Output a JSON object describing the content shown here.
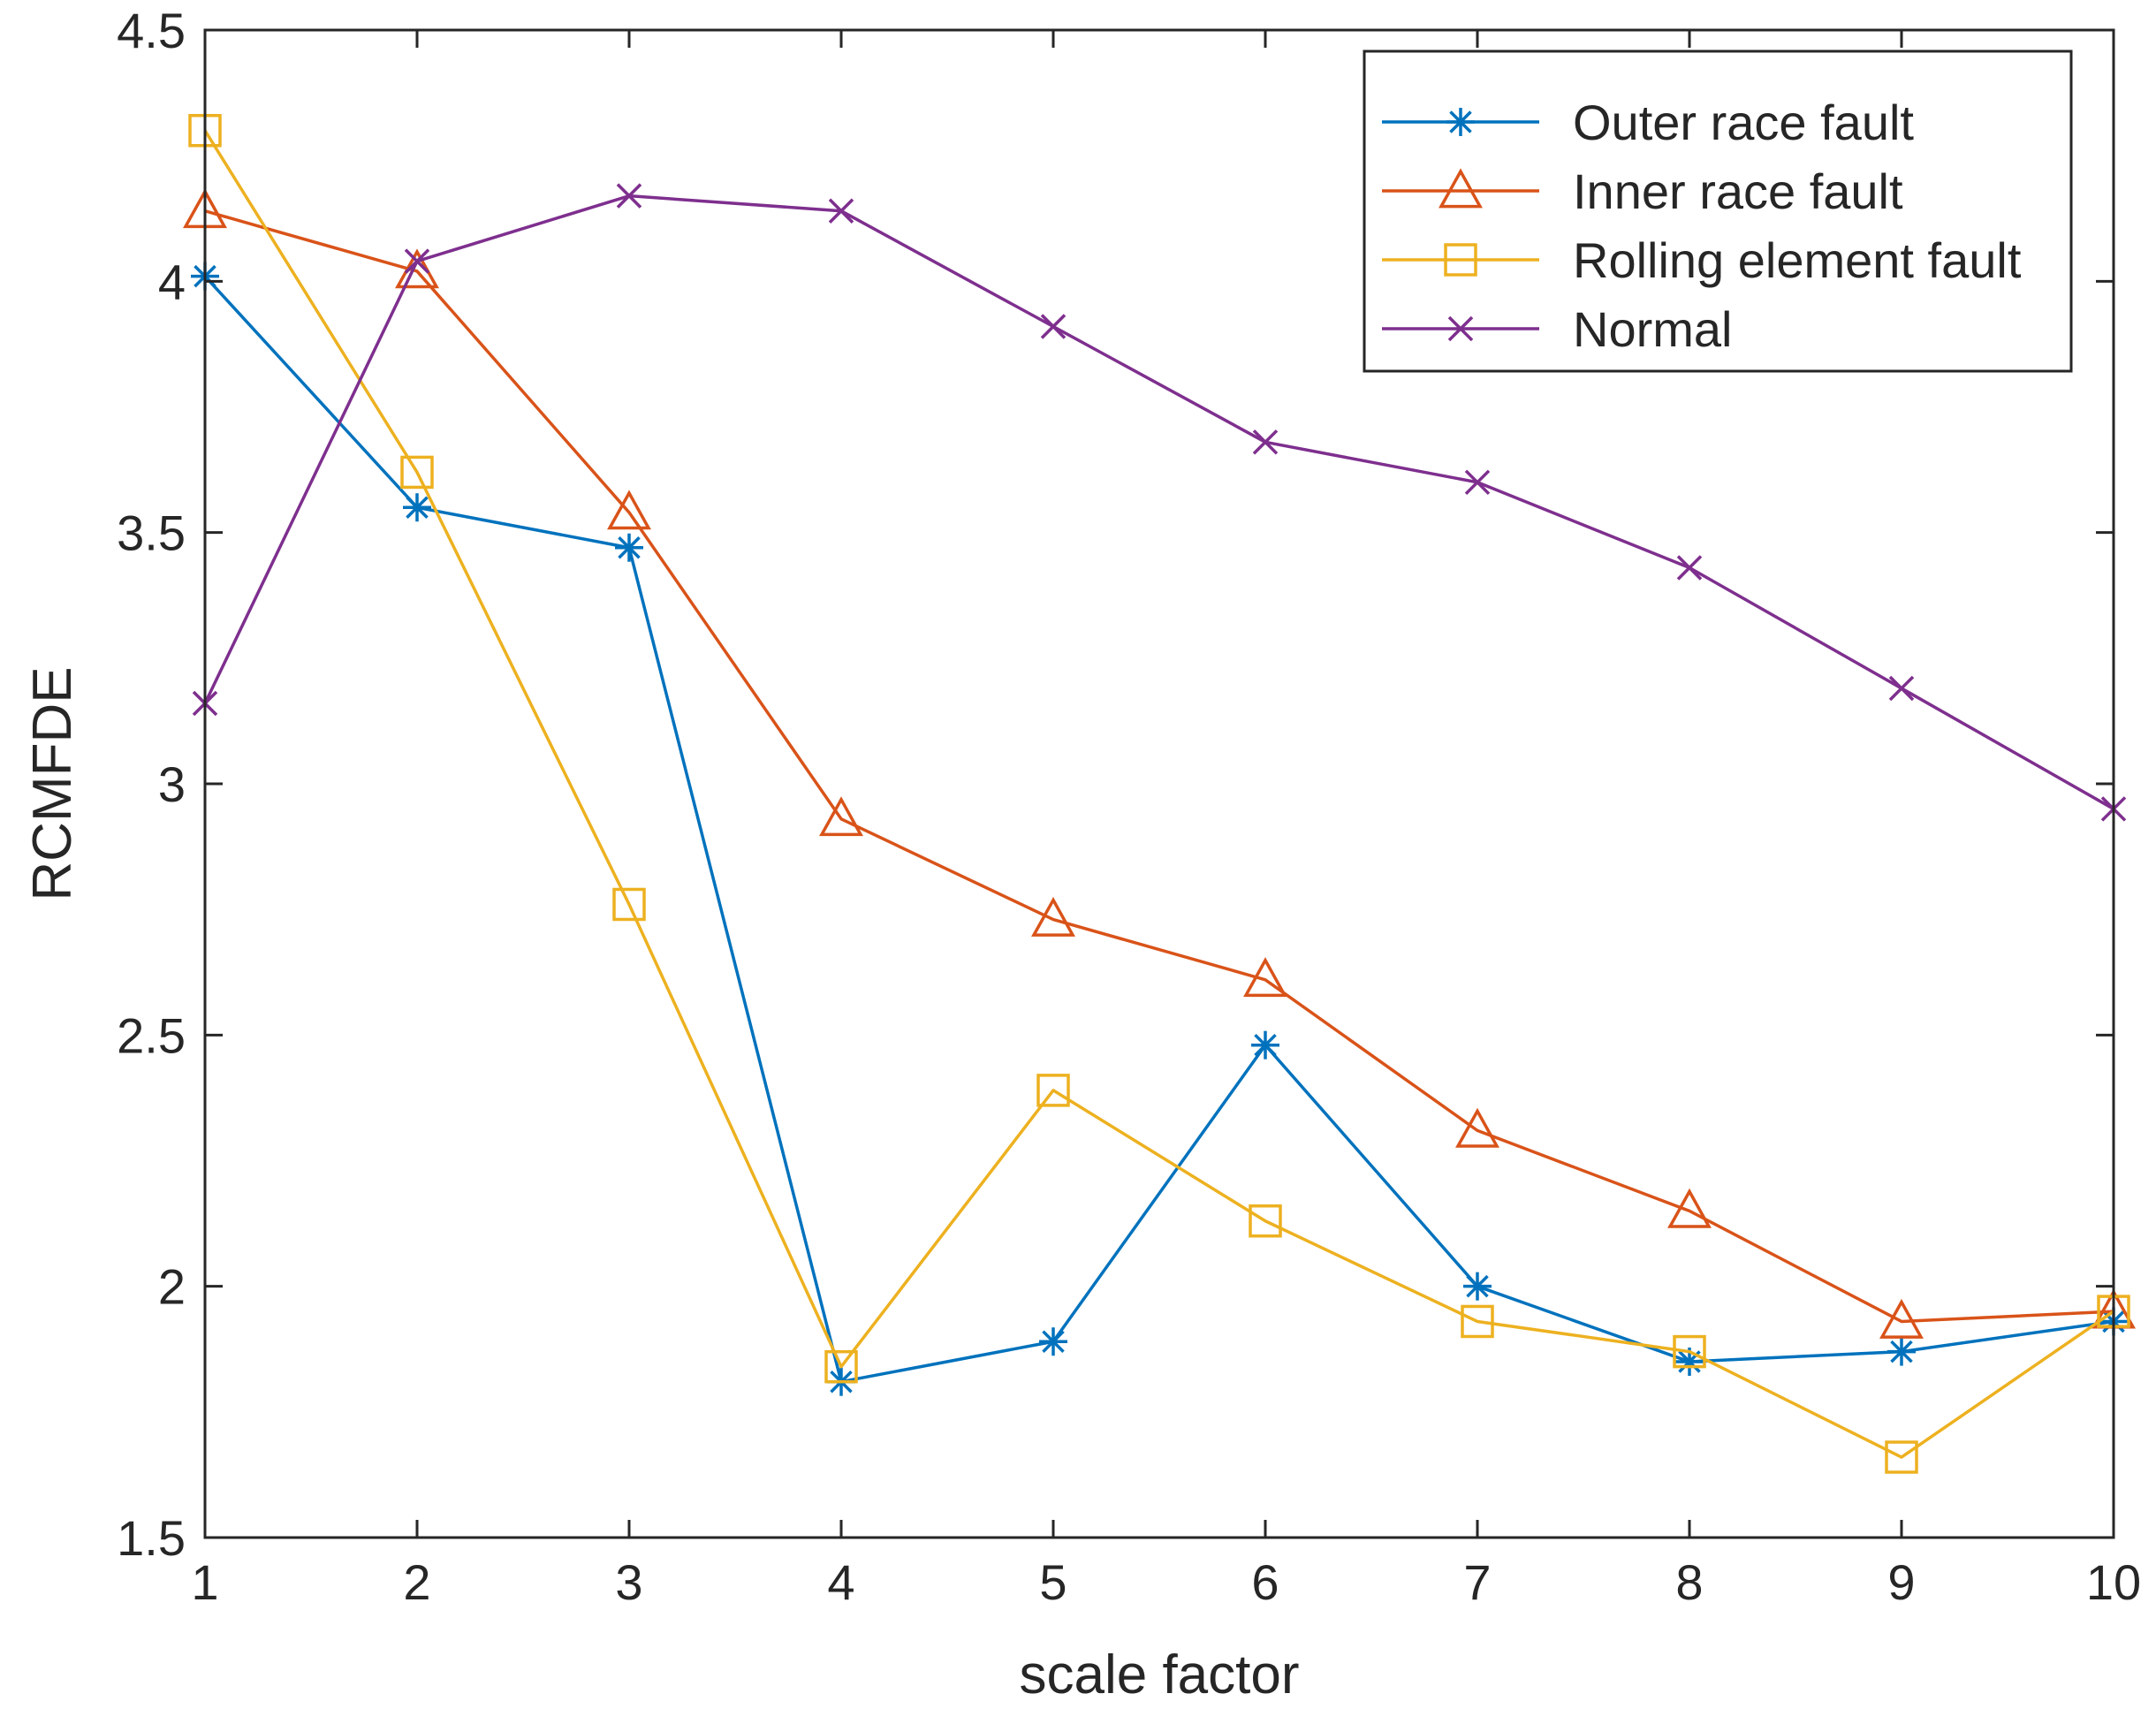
{
  "chart_data": {
    "type": "line",
    "title": "",
    "xlabel": "scale factor",
    "ylabel": "RCMFDE",
    "xlim": [
      1,
      10
    ],
    "ylim": [
      1.5,
      4.5
    ],
    "xticks": [
      1,
      2,
      3,
      4,
      5,
      6,
      7,
      8,
      9,
      10
    ],
    "xtick_labels": [
      "1",
      "2",
      "3",
      "4",
      "5",
      "6",
      "7",
      "8",
      "9",
      "10"
    ],
    "yticks": [
      1.5,
      2,
      2.5,
      3,
      3.5,
      4,
      4.5
    ],
    "ytick_labels": [
      "1.5",
      "2",
      "2.5",
      "3",
      "3.5",
      "4",
      "4.5"
    ],
    "grid": false,
    "legend_position": "top-right",
    "x": [
      1,
      2,
      3,
      4,
      5,
      6,
      7,
      8,
      9,
      10
    ],
    "series": [
      {
        "name": "Outer race fault",
        "color": "#0072BD",
        "marker": "asterisk",
        "values": [
          4.01,
          3.55,
          3.47,
          1.81,
          1.89,
          2.48,
          2.0,
          1.85,
          1.87,
          1.93
        ]
      },
      {
        "name": "Inner race fault",
        "color": "#D95319",
        "marker": "triangle",
        "values": [
          4.14,
          4.02,
          3.54,
          2.93,
          2.73,
          2.61,
          2.31,
          2.15,
          1.93,
          1.95
        ]
      },
      {
        "name": "Rolling element fault",
        "color": "#EDB120",
        "marker": "square",
        "values": [
          4.3,
          3.62,
          2.76,
          1.84,
          2.39,
          2.13,
          1.93,
          1.87,
          1.66,
          1.95
        ]
      },
      {
        "name": "Normal",
        "color": "#7E2F8E",
        "marker": "x",
        "values": [
          3.16,
          4.04,
          4.17,
          4.14,
          3.91,
          3.68,
          3.6,
          3.43,
          3.19,
          2.95
        ]
      }
    ]
  }
}
